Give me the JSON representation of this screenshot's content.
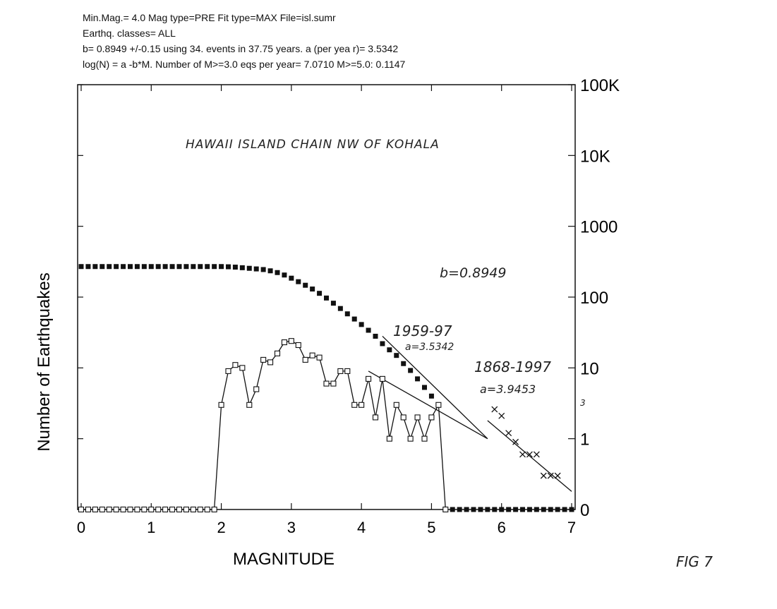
{
  "header": {
    "line1": "Min.Mag.= 4.0  Mag type=PRE  Fit type=MAX  File=isl.sumr",
    "line2": "Earthq. classes= ALL",
    "line3": "b= 0.8949 +/-0.15 using   34. events in 37.75 years. a (per yea r)=  3.5342",
    "line4": "log(N) = a -b*M.  Number of M>=3.0 eqs per year=    7.0710  M>=5.0:   0.1147"
  },
  "chart_data": {
    "type": "scatter",
    "xlabel": "MAGNITUDE",
    "ylabel": "Number of Earthquakes",
    "xlim": [
      0,
      7
    ],
    "ylim": [
      0.1,
      100000
    ],
    "yscale": "log",
    "xticks": [
      "0",
      "1",
      "2",
      "3",
      "4",
      "5",
      "6",
      "7"
    ],
    "yticks": [
      "0",
      "1",
      "10",
      "100",
      "1000",
      "10K",
      "100K"
    ],
    "annotations": {
      "region": "HAWAII ISLAND CHAIN NW OF KOHALA",
      "b_value": "b=0.8949",
      "period1": "1959-97",
      "a1": "a=3.5342",
      "period2": "1868-1997",
      "a2": "a=3.9453",
      "figure": "FIG 7",
      "stray": "3"
    },
    "series": [
      {
        "marker": "filled-square",
        "x": [
          0,
          0.1,
          0.2,
          0.3,
          0.4,
          0.5,
          0.6,
          0.7,
          0.8,
          0.9,
          1.0,
          1.1,
          1.2,
          1.3,
          1.4,
          1.5,
          1.6,
          1.7,
          1.8,
          1.9,
          2.0,
          2.1,
          2.2,
          2.3,
          2.4,
          2.5,
          2.6,
          2.7,
          2.8,
          2.9,
          3.0,
          3.1,
          3.2,
          3.3,
          3.4,
          3.5,
          3.6,
          3.7,
          3.8,
          3.9,
          4.0,
          4.1,
          4.2,
          4.3,
          4.4,
          4.5,
          4.6,
          4.7,
          4.8,
          4.9,
          5.0,
          5.1,
          5.2,
          5.3,
          5.4,
          5.5,
          5.6,
          5.7,
          5.8,
          5.9,
          6.0,
          6.1,
          6.2,
          6.3,
          6.4,
          6.5,
          6.6,
          6.7,
          6.8,
          6.9,
          7.0
        ],
        "y": [
          270,
          270,
          270,
          270,
          270,
          270,
          270,
          270,
          270,
          270,
          270,
          270,
          270,
          270,
          270,
          270,
          270,
          270,
          270,
          270,
          270,
          268,
          265,
          260,
          255,
          250,
          245,
          235,
          222,
          205,
          185,
          165,
          147,
          130,
          113,
          97,
          82,
          69,
          58,
          49,
          41,
          34,
          28,
          22,
          18,
          15,
          11.5,
          9.2,
          7,
          5.3,
          4,
          3,
          0.1,
          0.1,
          0.1,
          0.1,
          0.1,
          0.1,
          0.1,
          0.1,
          0.1,
          0.1,
          0.1,
          0.1,
          0.1,
          0.1,
          0.1,
          0.1,
          0.1,
          0.1,
          0.1
        ]
      },
      {
        "marker": "open-square",
        "x": [
          0,
          0.1,
          0.2,
          0.3,
          0.4,
          0.5,
          0.6,
          0.7,
          0.8,
          0.9,
          1.0,
          1.1,
          1.2,
          1.3,
          1.4,
          1.5,
          1.6,
          1.7,
          1.8,
          1.9,
          2.0,
          2.1,
          2.2,
          2.3,
          2.4,
          2.5,
          2.6,
          2.7,
          2.8,
          2.9,
          3.0,
          3.1,
          3.2,
          3.3,
          3.4,
          3.5,
          3.6,
          3.7,
          3.8,
          3.9,
          4.0,
          4.1,
          4.2,
          4.3,
          4.4,
          4.5,
          4.6,
          4.7,
          4.8,
          4.9,
          5.0,
          5.1,
          5.2
        ],
        "y": [
          0.1,
          0.1,
          0.1,
          0.1,
          0.1,
          0.1,
          0.1,
          0.1,
          0.1,
          0.1,
          0.1,
          0.1,
          0.1,
          0.1,
          0.1,
          0.1,
          0.1,
          0.1,
          0.1,
          0.1,
          3,
          9,
          11,
          10,
          3,
          5,
          13,
          12,
          16,
          23,
          24,
          21,
          13,
          15,
          14,
          6,
          6,
          9,
          9,
          3,
          3,
          7,
          2,
          7,
          1,
          3,
          2,
          1,
          2,
          1,
          2,
          3,
          0.1
        ]
      },
      {
        "marker": "x",
        "x": [
          5.9,
          6.0,
          6.1,
          6.2,
          6.3,
          6.4,
          6.5,
          6.6,
          6.7,
          6.8
        ],
        "y": [
          2.6,
          2.1,
          1.2,
          0.9,
          0.6,
          0.6,
          0.6,
          0.3,
          0.3,
          0.3
        ]
      }
    ],
    "fit_lines": [
      {
        "x": [
          4.1,
          5.8
        ],
        "y": [
          9,
          1
        ]
      },
      {
        "x": [
          4.3,
          5.8
        ],
        "y": [
          28,
          1
        ]
      },
      {
        "x": [
          5.8,
          7.0
        ],
        "y": [
          1.8,
          0.18
        ]
      }
    ]
  }
}
